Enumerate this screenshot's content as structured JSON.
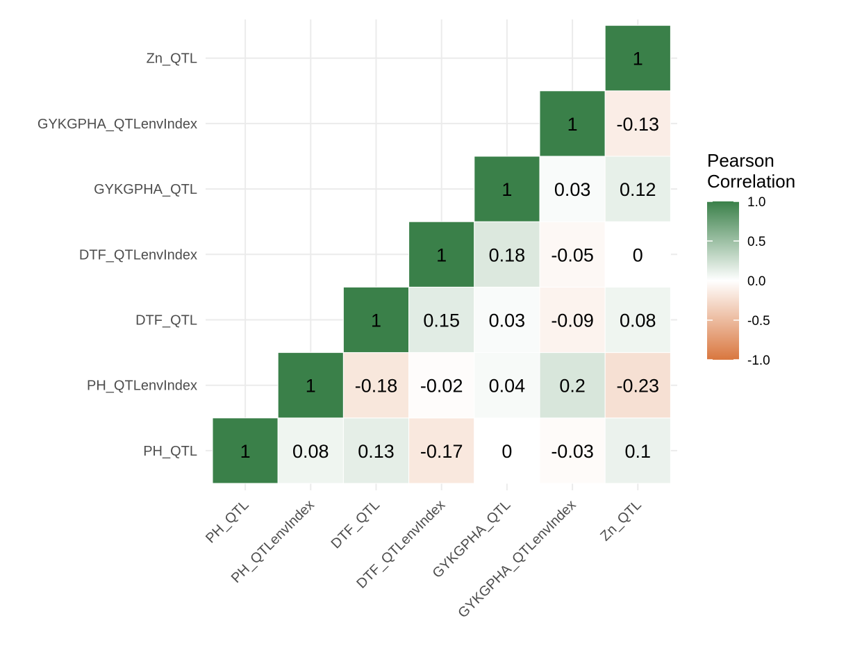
{
  "chart_data": {
    "type": "heatmap",
    "title": "",
    "xlabel": "",
    "ylabel": "",
    "variables": [
      "PH_QTL",
      "PH_QTLenvIndex",
      "DTF_QTL",
      "DTF_QTLenvIndex",
      "GYKGPHA_QTL",
      "GYKGPHA_QTLenvIndex",
      "Zn_QTL"
    ],
    "x_tick_labels": [
      "PH_QTL",
      "PH_QTLenvIndex",
      "DTF_QTL",
      "DTF_QTLenvIndex",
      "GYKGPHA_QTL",
      "GYKGPHA_QTLenvIndex",
      "Zn_QTL"
    ],
    "y_tick_labels": [
      "PH_QTL",
      "PH_QTLenvIndex",
      "DTF_QTL",
      "DTF_QTLenvIndex",
      "GYKGPHA_QTL",
      "GYKGPHA_QTLenvIndex",
      "Zn_QTL"
    ],
    "cells": [
      {
        "x": "PH_QTL",
        "y": "PH_QTL",
        "value": 1,
        "label": "1"
      },
      {
        "x": "PH_QTLenvIndex",
        "y": "PH_QTL",
        "value": 0.08,
        "label": "0.08"
      },
      {
        "x": "DTF_QTL",
        "y": "PH_QTL",
        "value": 0.13,
        "label": "0.13"
      },
      {
        "x": "DTF_QTLenvIndex",
        "y": "PH_QTL",
        "value": -0.17,
        "label": "-0.17"
      },
      {
        "x": "GYKGPHA_QTL",
        "y": "PH_QTL",
        "value": 0,
        "label": "0"
      },
      {
        "x": "GYKGPHA_QTLenvIndex",
        "y": "PH_QTL",
        "value": -0.03,
        "label": "-0.03"
      },
      {
        "x": "Zn_QTL",
        "y": "PH_QTL",
        "value": 0.1,
        "label": "0.1"
      },
      {
        "x": "PH_QTLenvIndex",
        "y": "PH_QTLenvIndex",
        "value": 1,
        "label": "1"
      },
      {
        "x": "DTF_QTL",
        "y": "PH_QTLenvIndex",
        "value": -0.18,
        "label": "-0.18"
      },
      {
        "x": "DTF_QTLenvIndex",
        "y": "PH_QTLenvIndex",
        "value": -0.02,
        "label": "-0.02"
      },
      {
        "x": "GYKGPHA_QTL",
        "y": "PH_QTLenvIndex",
        "value": 0.04,
        "label": "0.04"
      },
      {
        "x": "GYKGPHA_QTLenvIndex",
        "y": "PH_QTLenvIndex",
        "value": 0.2,
        "label": "0.2"
      },
      {
        "x": "Zn_QTL",
        "y": "PH_QTLenvIndex",
        "value": -0.23,
        "label": "-0.23"
      },
      {
        "x": "DTF_QTL",
        "y": "DTF_QTL",
        "value": 1,
        "label": "1"
      },
      {
        "x": "DTF_QTLenvIndex",
        "y": "DTF_QTL",
        "value": 0.15,
        "label": "0.15"
      },
      {
        "x": "GYKGPHA_QTL",
        "y": "DTF_QTL",
        "value": 0.03,
        "label": "0.03"
      },
      {
        "x": "GYKGPHA_QTLenvIndex",
        "y": "DTF_QTL",
        "value": -0.09,
        "label": "-0.09"
      },
      {
        "x": "Zn_QTL",
        "y": "DTF_QTL",
        "value": 0.08,
        "label": "0.08"
      },
      {
        "x": "DTF_QTLenvIndex",
        "y": "DTF_QTLenvIndex",
        "value": 1,
        "label": "1"
      },
      {
        "x": "GYKGPHA_QTL",
        "y": "DTF_QTLenvIndex",
        "value": 0.18,
        "label": "0.18"
      },
      {
        "x": "GYKGPHA_QTLenvIndex",
        "y": "DTF_QTLenvIndex",
        "value": -0.05,
        "label": "-0.05"
      },
      {
        "x": "Zn_QTL",
        "y": "DTF_QTLenvIndex",
        "value": 0,
        "label": "0"
      },
      {
        "x": "GYKGPHA_QTL",
        "y": "GYKGPHA_QTL",
        "value": 1,
        "label": "1"
      },
      {
        "x": "GYKGPHA_QTLenvIndex",
        "y": "GYKGPHA_QTL",
        "value": 0.03,
        "label": "0.03"
      },
      {
        "x": "Zn_QTL",
        "y": "GYKGPHA_QTL",
        "value": 0.12,
        "label": "0.12"
      },
      {
        "x": "GYKGPHA_QTLenvIndex",
        "y": "GYKGPHA_QTLenvIndex",
        "value": 1,
        "label": "1"
      },
      {
        "x": "Zn_QTL",
        "y": "GYKGPHA_QTLenvIndex",
        "value": -0.13,
        "label": "-0.13"
      },
      {
        "x": "Zn_QTL",
        "y": "Zn_QTL",
        "value": 1,
        "label": "1"
      }
    ],
    "legend": {
      "title_lines": [
        "Pearson",
        "Correlation"
      ],
      "ticks": [
        1.0,
        0.5,
        0.0,
        -0.5,
        -1.0
      ],
      "tick_labels": [
        "1.0",
        "0.5",
        "0.0",
        "-0.5",
        "-1.0"
      ],
      "limits": [
        -1,
        1
      ],
      "placement": "right"
    },
    "colors": {
      "low": "#d9773f",
      "mid": "#ffffff",
      "high": "#3a8049",
      "grid": "#ebebeb",
      "tick_text": "#4d4d4d"
    },
    "grid": true
  }
}
